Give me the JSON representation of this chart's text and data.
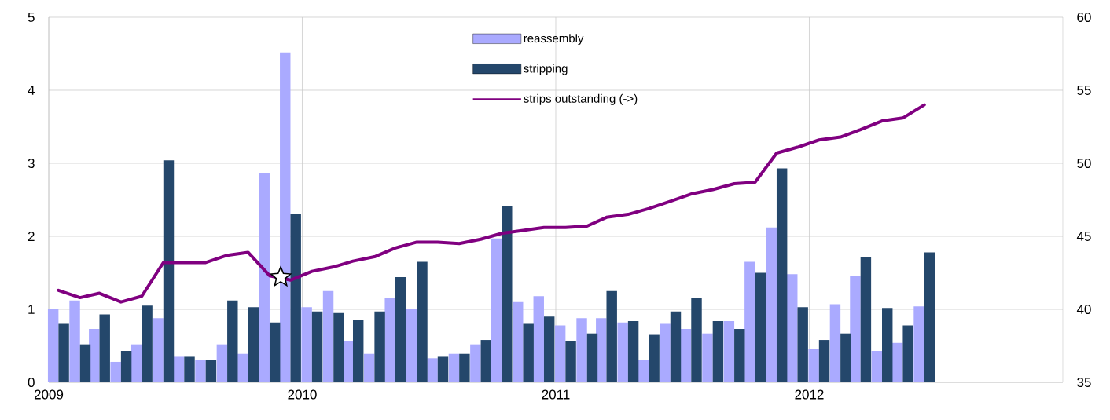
{
  "chart_data": {
    "type": "bar",
    "x": [
      "2009-01-15",
      "2009-02-15",
      "2009-03-15",
      "2009-04-15",
      "2009-05-15",
      "2009-06-15",
      "2009-07-15",
      "2009-08-15",
      "2009-09-15",
      "2009-10-15",
      "2009-11-15",
      "2009-12-15",
      "2010-01-15",
      "2010-02-15",
      "2010-03-15",
      "2010-04-15",
      "2010-05-15",
      "2010-06-15",
      "2010-07-15",
      "2010-08-15",
      "2010-09-15",
      "2010-10-15",
      "2010-11-15",
      "2010-12-15",
      "2011-01-15",
      "2011-02-15",
      "2011-03-15",
      "2011-04-15",
      "2011-05-15",
      "2011-06-15",
      "2011-07-15",
      "2011-08-15",
      "2011-09-15",
      "2011-10-15",
      "2011-11-15",
      "2011-12-15",
      "2012-01-15",
      "2012-02-15",
      "2012-03-15",
      "2012-04-15",
      "2012-05-15",
      "2012-06-15"
    ],
    "series": [
      {
        "name": "reassembly",
        "color": "#aaaaff",
        "values": [
          1.01,
          1.12,
          0.73,
          0.28,
          0.52,
          0.88,
          0.35,
          0.31,
          0.52,
          0.39,
          2.87,
          4.52,
          1.03,
          1.25,
          0.56,
          0.39,
          1.16,
          1.01,
          0.33,
          0.39,
          0.52,
          1.97,
          1.1,
          1.18,
          0.78,
          0.88,
          0.88,
          0.82,
          0.31,
          0.8,
          0.73,
          0.67,
          0.84,
          1.65,
          2.12,
          1.48,
          0.46,
          1.07,
          1.46,
          0.43,
          0.54,
          1.04
        ]
      },
      {
        "name": "stripping",
        "color": "#24476b",
        "values": [
          0.8,
          0.52,
          0.93,
          0.43,
          1.05,
          3.04,
          0.35,
          0.31,
          1.12,
          1.03,
          0.82,
          2.31,
          0.97,
          0.95,
          0.86,
          0.97,
          1.44,
          1.65,
          0.35,
          0.39,
          0.58,
          2.42,
          0.8,
          0.9,
          0.56,
          0.67,
          1.25,
          0.84,
          0.65,
          0.97,
          1.16,
          0.84,
          0.73,
          1.5,
          2.93,
          1.03,
          0.58,
          0.67,
          1.72,
          1.02,
          0.78,
          1.78
        ]
      },
      {
        "name": "strips outstanding (->)",
        "type": "line",
        "axis": "y2",
        "color": "#800080",
        "values": [
          41.3,
          40.8,
          41.1,
          40.5,
          40.9,
          43.2,
          43.2,
          43.2,
          43.7,
          43.9,
          42.3,
          42.0,
          42.6,
          42.9,
          43.3,
          43.6,
          44.2,
          44.6,
          44.6,
          44.5,
          44.8,
          45.2,
          45.4,
          45.6,
          45.6,
          45.7,
          46.3,
          46.5,
          46.9,
          47.4,
          47.9,
          48.2,
          48.6,
          48.7,
          50.7,
          51.1,
          51.6,
          51.8,
          52.3,
          52.9,
          53.1,
          54.0
        ]
      },
      {
        "type": "scatter",
        "axis": "y2",
        "marker": "star",
        "color": "#ffffff",
        "x": [
          "2009-12-01"
        ],
        "values": [
          42.2
        ]
      }
    ],
    "xlim": [
      "2009",
      "2013"
    ],
    "xticks": [
      "2009",
      "2010",
      "2011",
      "2012"
    ],
    "ylim": [
      0,
      5
    ],
    "yticks": [
      0,
      1,
      2,
      3,
      4,
      5
    ],
    "y2lim": [
      35,
      60
    ],
    "y2ticks": [
      35,
      40,
      45,
      50,
      55,
      60
    ],
    "grid": true,
    "legend": "top"
  }
}
